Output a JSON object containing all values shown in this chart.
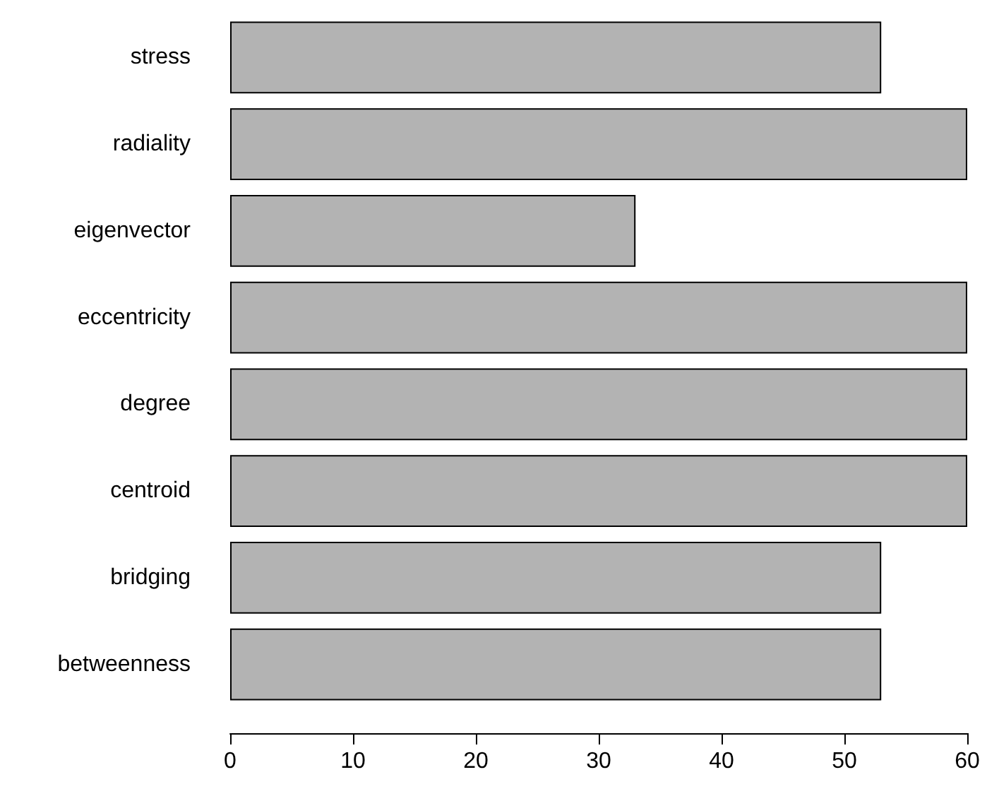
{
  "chart_data": {
    "type": "bar",
    "orientation": "horizontal",
    "categories": [
      "stress",
      "radiality",
      "eigenvector",
      "eccentricity",
      "degree",
      "centroid",
      "bridging",
      "betweenness"
    ],
    "values": [
      53,
      60,
      33,
      60,
      60,
      60,
      53,
      53
    ],
    "color": "#b3b3b3",
    "xlim": [
      0,
      60
    ],
    "xticks": [
      0,
      10,
      20,
      30,
      40,
      50,
      60
    ],
    "grid": false
  }
}
